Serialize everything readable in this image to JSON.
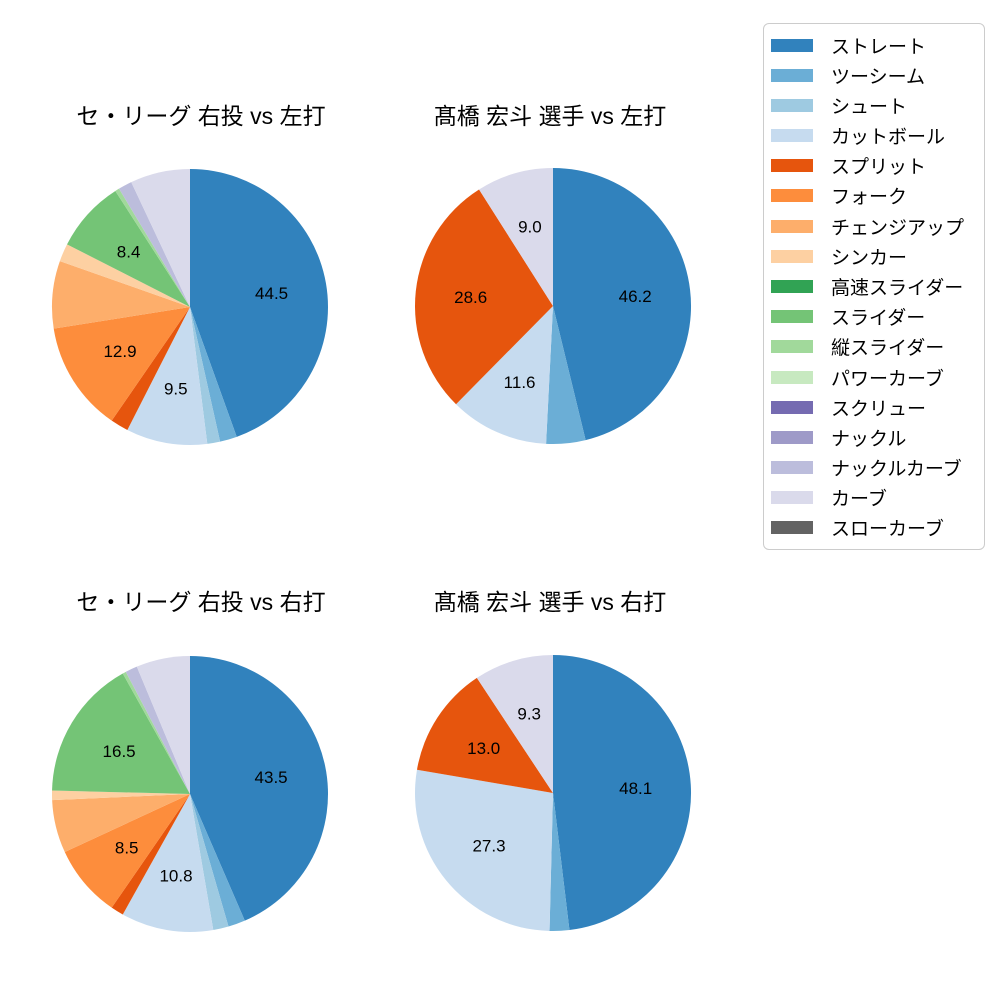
{
  "figure_background": "#ffffff",
  "chart_data": [
    {
      "type": "pie",
      "title": "セ・リーグ 右投 vs 左打",
      "start_angle": 90,
      "direction": "clockwise",
      "units": "percent",
      "slices": [
        {
          "name": "ストレート",
          "value": 44.5,
          "label": "44.5",
          "color": "#3182bd"
        },
        {
          "name": "ツーシーム",
          "value": 2.0,
          "label": null,
          "color": "#6baed6"
        },
        {
          "name": "シュート",
          "value": 1.5,
          "label": null,
          "color": "#9ecae1"
        },
        {
          "name": "カットボール",
          "value": 9.5,
          "label": "9.5",
          "color": "#c6dbef"
        },
        {
          "name": "スプリット",
          "value": 2.1,
          "label": null,
          "color": "#e6550d"
        },
        {
          "name": "フォーク",
          "value": 12.9,
          "label": "12.9",
          "color": "#fd8d3c"
        },
        {
          "name": "チェンジアップ",
          "value": 7.9,
          "label": null,
          "color": "#fdae6b"
        },
        {
          "name": "シンカー",
          "value": 2.1,
          "label": null,
          "color": "#fdd0a2"
        },
        {
          "name": "スライダー",
          "value": 8.4,
          "label": "8.4",
          "color": "#74c476"
        },
        {
          "name": "縦スライダー",
          "value": 0.5,
          "label": null,
          "color": "#a1d99b"
        },
        {
          "name": "ナックルカーブ",
          "value": 1.6,
          "label": null,
          "color": "#bcbddc"
        },
        {
          "name": "カーブ",
          "value": 7.0,
          "label": null,
          "color": "#dadaeb"
        }
      ]
    },
    {
      "type": "pie",
      "title": "髙橋 宏斗 選手 vs 左打",
      "start_angle": 90,
      "direction": "clockwise",
      "units": "percent",
      "slices": [
        {
          "name": "ストレート",
          "value": 46.2,
          "label": "46.2",
          "color": "#3182bd"
        },
        {
          "name": "ツーシーム",
          "value": 4.6,
          "label": null,
          "color": "#6baed6"
        },
        {
          "name": "カットボール",
          "value": 11.6,
          "label": "11.6",
          "color": "#c6dbef"
        },
        {
          "name": "スプリット",
          "value": 28.6,
          "label": "28.6",
          "color": "#e6550d"
        },
        {
          "name": "カーブ",
          "value": 9.0,
          "label": "9.0",
          "color": "#dadaeb"
        }
      ]
    },
    {
      "type": "pie",
      "title": "セ・リーグ 右投 vs 右打",
      "start_angle": 90,
      "direction": "clockwise",
      "units": "percent",
      "slices": [
        {
          "name": "ストレート",
          "value": 43.5,
          "label": "43.5",
          "color": "#3182bd"
        },
        {
          "name": "ツーシーム",
          "value": 2.0,
          "label": null,
          "color": "#6baed6"
        },
        {
          "name": "シュート",
          "value": 1.8,
          "label": null,
          "color": "#9ecae1"
        },
        {
          "name": "カットボール",
          "value": 10.8,
          "label": "10.8",
          "color": "#c6dbef"
        },
        {
          "name": "スプリット",
          "value": 1.5,
          "label": null,
          "color": "#e6550d"
        },
        {
          "name": "フォーク",
          "value": 8.5,
          "label": "8.5",
          "color": "#fd8d3c"
        },
        {
          "name": "チェンジアップ",
          "value": 6.2,
          "label": null,
          "color": "#fdae6b"
        },
        {
          "name": "シンカー",
          "value": 1.1,
          "label": null,
          "color": "#fdd0a2"
        },
        {
          "name": "スライダー",
          "value": 16.5,
          "label": "16.5",
          "color": "#74c476"
        },
        {
          "name": "縦スライダー",
          "value": 0.4,
          "label": null,
          "color": "#a1d99b"
        },
        {
          "name": "ナックルカーブ",
          "value": 1.4,
          "label": null,
          "color": "#bcbddc"
        },
        {
          "name": "カーブ",
          "value": 6.3,
          "label": null,
          "color": "#dadaeb"
        }
      ]
    },
    {
      "type": "pie",
      "title": "髙橋 宏斗 選手 vs 右打",
      "start_angle": 90,
      "direction": "clockwise",
      "units": "percent",
      "slices": [
        {
          "name": "ストレート",
          "value": 48.1,
          "label": "48.1",
          "color": "#3182bd"
        },
        {
          "name": "ツーシーム",
          "value": 2.3,
          "label": null,
          "color": "#6baed6"
        },
        {
          "name": "カットボール",
          "value": 27.3,
          "label": "27.3",
          "color": "#c6dbef"
        },
        {
          "name": "スプリット",
          "value": 13.0,
          "label": "13.0",
          "color": "#e6550d"
        },
        {
          "name": "カーブ",
          "value": 9.3,
          "label": "9.3",
          "color": "#dadaeb"
        }
      ]
    }
  ],
  "legend": {
    "position": "upper right",
    "items": [
      {
        "label": "ストレート",
        "color": "#3182bd"
      },
      {
        "label": "ツーシーム",
        "color": "#6baed6"
      },
      {
        "label": "シュート",
        "color": "#9ecae1"
      },
      {
        "label": "カットボール",
        "color": "#c6dbef"
      },
      {
        "label": "スプリット",
        "color": "#e6550d"
      },
      {
        "label": "フォーク",
        "color": "#fd8d3c"
      },
      {
        "label": "チェンジアップ",
        "color": "#fdae6b"
      },
      {
        "label": "シンカー",
        "color": "#fdd0a2"
      },
      {
        "label": "高速スライダー",
        "color": "#31a354"
      },
      {
        "label": "スライダー",
        "color": "#74c476"
      },
      {
        "label": "縦スライダー",
        "color": "#a1d99b"
      },
      {
        "label": "パワーカーブ",
        "color": "#c7e9c0"
      },
      {
        "label": "スクリュー",
        "color": "#756bb1"
      },
      {
        "label": "ナックル",
        "color": "#9e9ac8"
      },
      {
        "label": "ナックルカーブ",
        "color": "#bcbddc"
      },
      {
        "label": "カーブ",
        "color": "#dadaeb"
      },
      {
        "label": "スローカーブ",
        "color": "#636363"
      }
    ]
  }
}
